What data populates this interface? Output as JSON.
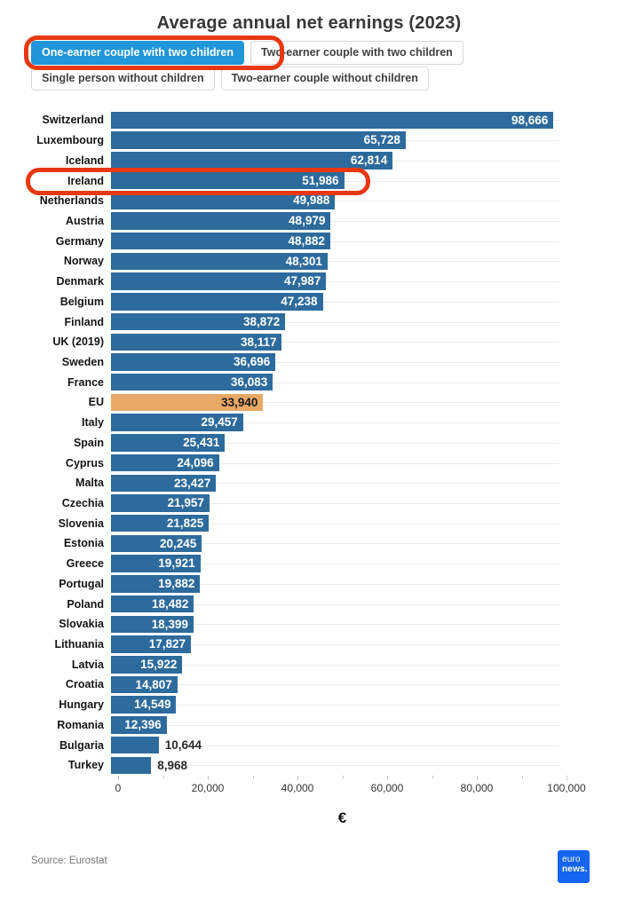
{
  "title": "Average annual net earnings (2023)",
  "filters": {
    "buttons": [
      {
        "label": "One-earner couple with two children",
        "active": true
      },
      {
        "label": "Two-earner couple with two children",
        "active": false
      },
      {
        "label": "Single person without children",
        "active": false
      },
      {
        "label": "Two-earner couple without children",
        "active": false
      }
    ]
  },
  "chart_data": {
    "type": "bar",
    "orientation": "horizontal",
    "title": "Average annual net earnings (2023)",
    "xlabel": "€",
    "xlim": [
      0,
      100000
    ],
    "x_ticks": [
      "0",
      "20,000",
      "40,000",
      "60,000",
      "80,000",
      "100,000"
    ],
    "grid": true,
    "categories": [
      "Switzerland",
      "Luxembourg",
      "Iceland",
      "Ireland",
      "Netherlands",
      "Austria",
      "Germany",
      "Norway",
      "Denmark",
      "Belgium",
      "Finland",
      "UK (2019)",
      "Sweden",
      "France",
      "EU",
      "Italy",
      "Spain",
      "Cyprus",
      "Malta",
      "Czechia",
      "Slovenia",
      "Estonia",
      "Greece",
      "Portugal",
      "Poland",
      "Slovakia",
      "Lithuania",
      "Latvia",
      "Croatia",
      "Hungary",
      "Romania",
      "Bulgaria",
      "Turkey"
    ],
    "values": [
      98666,
      65728,
      62814,
      51986,
      49988,
      48979,
      48882,
      48301,
      47987,
      47238,
      38872,
      38117,
      36696,
      36083,
      33940,
      29457,
      25431,
      24096,
      23427,
      21957,
      21825,
      20245,
      19921,
      19882,
      18482,
      18399,
      17827,
      15922,
      14807,
      14549,
      12396,
      10644,
      8968
    ],
    "value_labels": [
      "98,666",
      "65,728",
      "62,814",
      "51,986",
      "49,988",
      "48,979",
      "48,882",
      "48,301",
      "47,987",
      "47,238",
      "38,872",
      "38,117",
      "36,696",
      "36,083",
      "33,940",
      "29,457",
      "25,431",
      "24,096",
      "23,427",
      "21,957",
      "21,825",
      "20,245",
      "19,921",
      "19,882",
      "18,482",
      "18,399",
      "17,827",
      "15,922",
      "14,807",
      "14,549",
      "12,396",
      "10,644",
      "8,968"
    ],
    "highlight_category": "EU",
    "outside_label_categories": [
      "Bulgaria",
      "Turkey"
    ],
    "annotated_category": "Ireland",
    "colors": {
      "bar": "#2d6b9d",
      "highlight": "#e9a867",
      "active_button": "#2196d9",
      "annotation": "#e83811",
      "logo": "#1565f0"
    }
  },
  "footer": {
    "source": "Source: Eurostat",
    "logo_line1": "euro",
    "logo_line2": "news."
  }
}
